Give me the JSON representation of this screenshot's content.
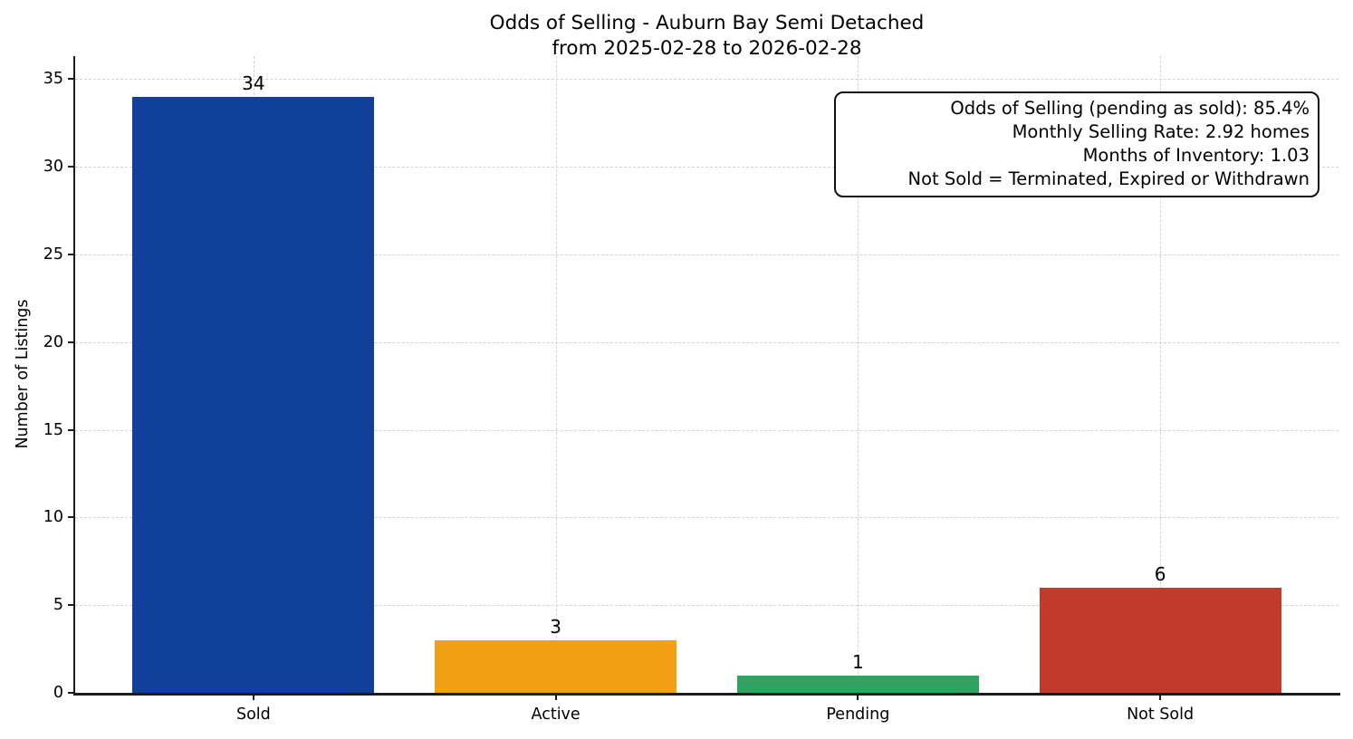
{
  "chart_data": {
    "type": "bar",
    "title": "Odds of Selling - Auburn Bay Semi Detached",
    "subtitle": "from 2025-02-28 to 2026-02-28",
    "ylabel": "Number of Listings",
    "xlabel": "",
    "categories": [
      "Sold",
      "Active",
      "Pending",
      "Not Sold"
    ],
    "values": [
      34,
      3,
      1,
      6
    ],
    "value_labels": [
      "34",
      "3",
      "1",
      "6"
    ],
    "bar_colors": [
      "#11409b",
      "#f2a114",
      "#2fa360",
      "#c13a2b"
    ],
    "y_ticks": [
      0,
      5,
      10,
      15,
      20,
      25,
      30,
      35
    ],
    "y_tick_labels": [
      "0",
      "5",
      "10",
      "15",
      "20",
      "25",
      "30",
      "35"
    ],
    "ylim": [
      0,
      36.3
    ],
    "grid": "dashed horizontal and vertical",
    "legend": "none",
    "annotation": {
      "lines": [
        "Odds of Selling (pending as sold): 85.4%",
        "Monthly Selling Rate: 2.92 homes",
        "Months of Inventory: 1.03",
        "Not Sold = Terminated, Expired or Withdrawn"
      ]
    },
    "colors": {
      "background": "#ffffff",
      "grid": "#d2d2d2",
      "spine": "#1c1c1c",
      "text": "#000000"
    }
  }
}
